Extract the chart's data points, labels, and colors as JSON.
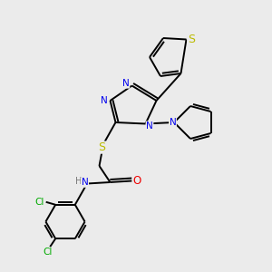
{
  "bg_color": "#ebebeb",
  "atom_colors": {
    "C": "#000000",
    "N": "#0000ee",
    "O": "#ee0000",
    "S": "#bbbb00",
    "Cl": "#00aa00",
    "H": "#777777"
  },
  "bond_color": "#000000",
  "font_size": 7.5,
  "fig_size": [
    3.0,
    3.0
  ],
  "dpi": 100,
  "lw": 1.4
}
